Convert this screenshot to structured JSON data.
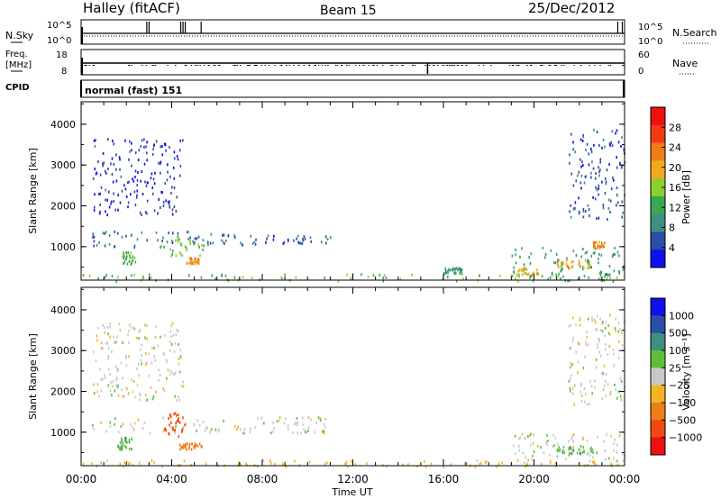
{
  "header": {
    "station": "Halley (fitACF)",
    "beam": "Beam 15",
    "date": "25/Dec/2012"
  },
  "strip_panels": {
    "nsky": {
      "label": "N.Sky",
      "left_ticks": [
        "10^5",
        "10^0"
      ],
      "right_label": "N.Search",
      "right_ticks": [
        "10^5",
        "10^0"
      ]
    },
    "freq": {
      "label_line1": "Freq.",
      "label_line2": "[MHz]",
      "left_ticks": [
        "18",
        "8"
      ],
      "right_label": "Nave",
      "right_ticks": [
        "60",
        "0"
      ]
    },
    "cpid": {
      "label": "CPID",
      "text": "normal (fast) 151"
    }
  },
  "time_axis": {
    "ticks": [
      "00:00",
      "04:00",
      "08:00",
      "12:00",
      "16:00",
      "20:00",
      "00:00"
    ],
    "label": "Time UT"
  },
  "colors": {
    "power": [
      "#1010ee",
      "#2a4da8",
      "#3d8f80",
      "#3aa852",
      "#8ccf33",
      "#f2a81e",
      "#ef7d19",
      "#f03a12",
      "#ee1010"
    ],
    "velocity": [
      "#ee1010",
      "#f04a12",
      "#ef7d19",
      "#f2b51e",
      "#c8c8c8",
      "#5fbf3a",
      "#3d8f80",
      "#2a4da8",
      "#1010ee"
    ]
  },
  "chart_data": [
    {
      "type": "heatmap",
      "name": "power",
      "ylabel": "Slant Range [km]",
      "xlim": [
        "00:00",
        "24:00"
      ],
      "ylim": [
        180,
        4550
      ],
      "yticks": [
        "1000",
        "2000",
        "3000",
        "4000"
      ],
      "colorbar": {
        "label": "Power [dB]",
        "ticks": [
          "28",
          "24",
          "20",
          "16",
          "12",
          "8",
          "4"
        ],
        "range": [
          0,
          30
        ]
      },
      "echo_regions": [
        {
          "t_start": 0.3,
          "t_end": 7.8,
          "r_min": 1000,
          "r_max": 1400,
          "level": 6,
          "description": "main band"
        },
        {
          "t_start": 0.5,
          "t_end": 4.5,
          "r_min": 1800,
          "r_max": 3700,
          "level": 4,
          "description": "scattered high range"
        },
        {
          "t_start": 7.5,
          "t_end": 11.0,
          "r_min": 1100,
          "r_max": 1300,
          "level": 5,
          "description": "band tail"
        },
        {
          "t_start": 3.5,
          "t_end": 5.5,
          "r_min": 800,
          "r_max": 1250,
          "level": 14,
          "description": "strong patch"
        },
        {
          "t_start": 4.6,
          "t_end": 5.2,
          "r_min": 600,
          "r_max": 750,
          "level": 20,
          "description": "strong patch low"
        },
        {
          "t_start": 1.8,
          "t_end": 2.4,
          "r_min": 600,
          "r_max": 900,
          "level": 12
        },
        {
          "t_start": 19.0,
          "t_end": 24.0,
          "r_min": 300,
          "r_max": 1000,
          "level": 10,
          "description": "evening band"
        },
        {
          "t_start": 19.2,
          "t_end": 20.2,
          "r_min": 300,
          "r_max": 500,
          "level": 18
        },
        {
          "t_start": 21.0,
          "t_end": 22.5,
          "r_min": 500,
          "r_max": 700,
          "level": 18
        },
        {
          "t_start": 22.6,
          "t_end": 23.1,
          "r_min": 1000,
          "r_max": 1150,
          "level": 20
        },
        {
          "t_start": 21.5,
          "t_end": 24.0,
          "r_min": 1700,
          "r_max": 3900,
          "level": 5,
          "description": "late high range"
        },
        {
          "t_start": 16.0,
          "t_end": 16.8,
          "r_min": 350,
          "r_max": 500,
          "level": 10
        },
        {
          "t_start": 0.0,
          "t_end": 24.0,
          "r_min": 180,
          "r_max": 350,
          "level": 12,
          "description": "ground scatter low range"
        }
      ]
    },
    {
      "type": "heatmap",
      "name": "velocity",
      "ylabel": "Slant Range [km]",
      "xlim": [
        "00:00",
        "24:00"
      ],
      "ylim": [
        180,
        4550
      ],
      "yticks": [
        "1000",
        "2000",
        "3000",
        "4000"
      ],
      "colorbar": {
        "label": "Velocity [m s⁻¹]",
        "ticks": [
          "1000",
          "500",
          "100",
          "25",
          "−25",
          "−100",
          "−500",
          "−1000"
        ]
      },
      "echo_regions": [
        {
          "t_start": 0.3,
          "t_end": 11.0,
          "r_min": 1000,
          "r_max": 1400,
          "velocity": 0,
          "description": "main band (grey)"
        },
        {
          "t_start": 0.5,
          "t_end": 4.5,
          "r_min": 1800,
          "r_max": 3700,
          "velocity": 0,
          "description": "scattered high range"
        },
        {
          "t_start": 3.6,
          "t_end": 4.6,
          "r_min": 900,
          "r_max": 1500,
          "velocity": -300,
          "description": "orange patch"
        },
        {
          "t_start": 4.3,
          "t_end": 5.3,
          "r_min": 600,
          "r_max": 750,
          "velocity": -150
        },
        {
          "t_start": 1.6,
          "t_end": 2.2,
          "r_min": 600,
          "r_max": 900,
          "velocity": 80
        },
        {
          "t_start": 19.0,
          "t_end": 24.0,
          "r_min": 300,
          "r_max": 1000,
          "velocity": 0
        },
        {
          "t_start": 20.8,
          "t_end": 22.8,
          "r_min": 500,
          "r_max": 700,
          "velocity": 80
        },
        {
          "t_start": 21.5,
          "t_end": 24.0,
          "r_min": 1700,
          "r_max": 3900,
          "velocity": 0
        },
        {
          "t_start": 0.0,
          "t_end": 24.0,
          "r_min": 180,
          "r_max": 350,
          "velocity": -60
        }
      ]
    }
  ]
}
